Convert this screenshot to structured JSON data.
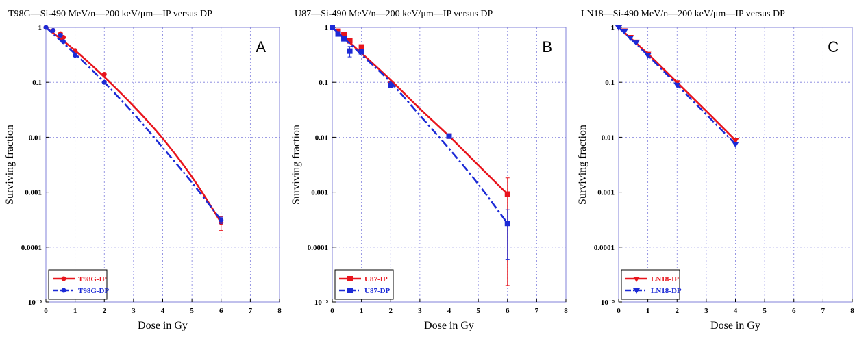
{
  "chart_data": [
    {
      "type": "line",
      "panel_letter": "A",
      "title": "T98G—Si-490 MeV/n—200 keV/μm—IP versus DP",
      "xlabel": "Dose in Gy",
      "ylabel": "Surviving fraction",
      "xlim": [
        0,
        8
      ],
      "ylim": [
        1e-05,
        1
      ],
      "yscale": "log",
      "grid": true,
      "legend_position": "bottom-left",
      "xticks": [
        "0",
        "1",
        "2",
        "3",
        "4",
        "5",
        "6",
        "7",
        "8"
      ],
      "yticks": [
        "1",
        "0.1",
        "0.01",
        "0.001",
        "0.0001",
        "10⁻⁵"
      ],
      "series": [
        {
          "name": "T98G-IP",
          "color": "#e8141c",
          "marker": "circle",
          "dash": "solid",
          "points": [
            [
              0,
              1
            ],
            [
              0.25,
              0.88
            ],
            [
              0.5,
              0.77
            ],
            [
              0.6,
              0.66
            ],
            [
              1,
              0.38
            ],
            [
              2,
              0.14
            ],
            [
              6,
              0.00028
            ]
          ],
          "error": [
            0,
            0,
            0,
            0,
            0,
            0,
            8e-05
          ],
          "fit_x": [
            0,
            1,
            2,
            3,
            4,
            5,
            6
          ],
          "fit_y": [
            1,
            0.38,
            0.125,
            0.037,
            0.0095,
            0.0019,
            0.00028
          ]
        },
        {
          "name": "T98G-DP",
          "color": "#1c2ad6",
          "marker": "circle",
          "dash": "dashdot",
          "points": [
            [
              0,
              1
            ],
            [
              0.25,
              0.88
            ],
            [
              0.5,
              0.72
            ],
            [
              0.6,
              0.55
            ],
            [
              1,
              0.31
            ],
            [
              2,
              0.1
            ],
            [
              6,
              0.00031
            ]
          ],
          "error": [
            0,
            0,
            0,
            0,
            0,
            0,
            4e-05
          ],
          "fit_x": [
            0,
            1,
            2,
            3,
            4,
            5,
            6
          ],
          "fit_y": [
            1,
            0.33,
            0.1,
            0.027,
            0.0065,
            0.0015,
            0.00031
          ]
        }
      ]
    },
    {
      "type": "line",
      "panel_letter": "B",
      "title": "U87—Si-490 MeV/n—200 keV/μm—IP versus DP",
      "xlabel": "Dose in Gy",
      "ylabel": "Surviving fraction",
      "xlim": [
        0,
        8
      ],
      "ylim": [
        1e-05,
        1
      ],
      "yscale": "log",
      "grid": true,
      "legend_position": "bottom-left",
      "xticks": [
        "0",
        "1",
        "2",
        "3",
        "4",
        "5",
        "6",
        "7",
        "8"
      ],
      "yticks": [
        "1",
        "0.1",
        "0.01",
        "0.001",
        "0.0001",
        "10⁻⁵"
      ],
      "series": [
        {
          "name": "U87-IP",
          "color": "#e8141c",
          "marker": "square",
          "dash": "solid",
          "points": [
            [
              0,
              1
            ],
            [
              0.2,
              0.85
            ],
            [
              0.4,
              0.73
            ],
            [
              0.6,
              0.57
            ],
            [
              1,
              0.44
            ],
            [
              2,
              0.092
            ],
            [
              4,
              0.0105
            ],
            [
              6,
              0.00092
            ]
          ],
          "error": [
            0,
            0,
            0,
            0,
            0,
            0,
            0,
            0.0009
          ],
          "fit_x": [
            0,
            1,
            2,
            3,
            4,
            5,
            6
          ],
          "fit_y": [
            1,
            0.34,
            0.11,
            0.033,
            0.0105,
            0.0031,
            0.00092
          ]
        },
        {
          "name": "U87-DP",
          "color": "#1c2ad6",
          "marker": "square",
          "dash": "dashdot",
          "points": [
            [
              0,
              1
            ],
            [
              0.2,
              0.76
            ],
            [
              0.4,
              0.62
            ],
            [
              0.6,
              0.37
            ],
            [
              1,
              0.36
            ],
            [
              2,
              0.088
            ],
            [
              4,
              0.0105
            ],
            [
              6,
              0.00027
            ]
          ],
          "error": [
            0,
            0,
            0,
            0.08,
            0,
            0,
            0,
            0.00021
          ],
          "fit_x": [
            0,
            1,
            2,
            3,
            4,
            5,
            6
          ],
          "fit_y": [
            1,
            0.32,
            0.1,
            0.025,
            0.0062,
            0.0014,
            0.00027
          ]
        }
      ]
    },
    {
      "type": "line",
      "panel_letter": "C",
      "title": "LN18—Si-490 MeV/n—200 keV/μm—IP versus DP",
      "xlabel": "Dose in Gy",
      "ylabel": "Surviving fraction",
      "xlim": [
        0,
        8
      ],
      "ylim": [
        1e-05,
        1
      ],
      "yscale": "log",
      "grid": true,
      "legend_position": "bottom-left",
      "xticks": [
        "0",
        "1",
        "2",
        "3",
        "4",
        "5",
        "6",
        "7",
        "8"
      ],
      "yticks": [
        "1",
        "0.1",
        "0.01",
        "0.001",
        "0.0001",
        "10⁻⁵"
      ],
      "series": [
        {
          "name": "LN18-IP",
          "color": "#e8141c",
          "marker": "triangle-down",
          "dash": "solid",
          "points": [
            [
              0,
              1
            ],
            [
              0.2,
              0.88
            ],
            [
              0.4,
              0.67
            ],
            [
              0.6,
              0.55
            ],
            [
              1,
              0.33
            ],
            [
              2,
              0.1
            ],
            [
              4,
              0.0088
            ]
          ],
          "error": [
            0,
            0,
            0,
            0,
            0,
            0,
            0
          ],
          "fit_x": [
            0,
            1,
            2,
            3,
            4
          ],
          "fit_y": [
            1,
            0.33,
            0.1,
            0.03,
            0.0088
          ]
        },
        {
          "name": "LN18-DP",
          "color": "#1c2ad6",
          "marker": "triangle-down",
          "dash": "dashdot",
          "points": [
            [
              0,
              1
            ],
            [
              0.2,
              0.85
            ],
            [
              0.4,
              0.65
            ],
            [
              0.6,
              0.53
            ],
            [
              1,
              0.31
            ],
            [
              2,
              0.09
            ],
            [
              4,
              0.0075
            ]
          ],
          "error": [
            0,
            0,
            0,
            0,
            0,
            0,
            0
          ],
          "fit_x": [
            0,
            1,
            2,
            3,
            4
          ],
          "fit_y": [
            1,
            0.31,
            0.09,
            0.026,
            0.0075
          ]
        }
      ]
    }
  ]
}
